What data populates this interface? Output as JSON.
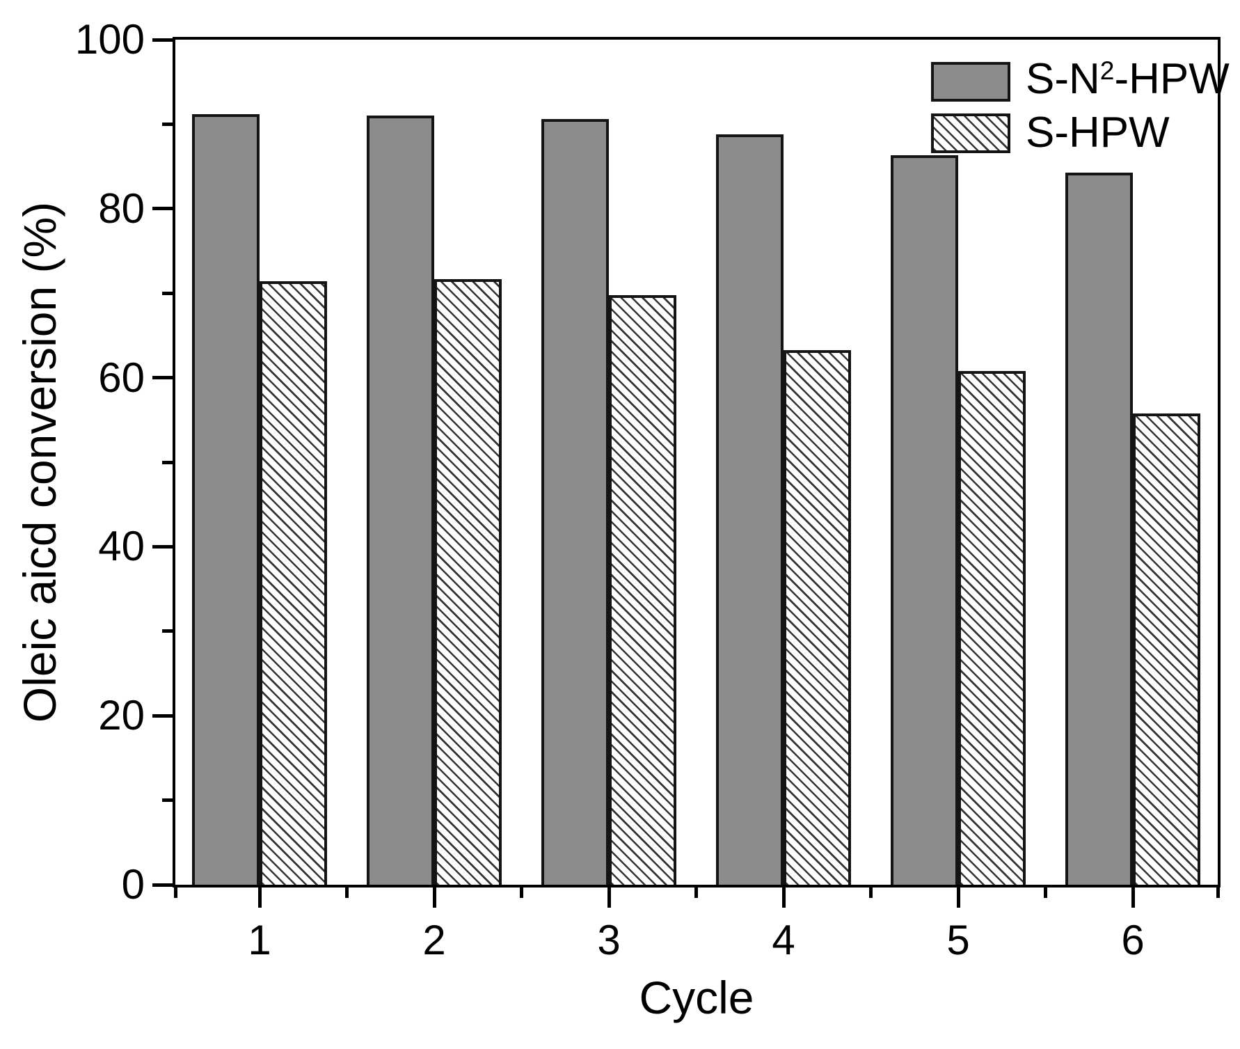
{
  "figure": {
    "background": "#ffffff"
  },
  "legend": {
    "position": "top-right",
    "items": [
      {
        "id": "s-n2-hpw",
        "text": "S-N²-HPW",
        "pre": "S-N",
        "sup": "2",
        "post": "-HPW",
        "swatch": "solid"
      },
      {
        "id": "s-hpw",
        "text": "S-HPW",
        "pre": "S-HPW",
        "sup": "",
        "post": "",
        "swatch": "hatch"
      }
    ]
  },
  "chart_data": {
    "type": "bar",
    "title": "",
    "xlabel": "Cycle",
    "ylabel": "Oleic aicd conversion (%)",
    "categories": [
      "1",
      "2",
      "3",
      "4",
      "5",
      "6"
    ],
    "series": [
      {
        "id": "s-n2-hpw",
        "name": "S-N²-HPW",
        "pattern": "solid",
        "fill": "#8c8c8c",
        "outline": "#141414",
        "values": [
          91.2,
          91.0,
          90.6,
          88.8,
          86.3,
          84.3
        ]
      },
      {
        "id": "s-hpw",
        "name": "S-HPW",
        "pattern": "diagonal-hatch",
        "fill": "#ffffff",
        "outline": "#141414",
        "values": [
          71.4,
          71.7,
          69.8,
          63.3,
          60.8,
          55.8
        ]
      }
    ],
    "ylim": [
      0,
      100
    ],
    "y_major_ticks": [
      0,
      20,
      40,
      60,
      80,
      100
    ],
    "y_minor_ticks": [
      10,
      30,
      50,
      70,
      90
    ],
    "grid": false,
    "legend_position": "top-right"
  }
}
